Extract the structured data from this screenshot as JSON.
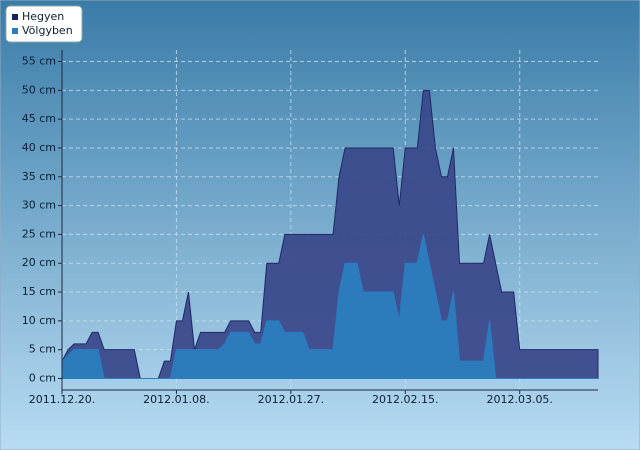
{
  "chart_data": {
    "type": "area",
    "categories": [
      "2011.12.20.",
      null,
      null,
      null,
      null,
      null,
      null,
      null,
      null,
      null,
      null,
      null,
      null,
      null,
      null,
      null,
      null,
      null,
      null,
      "2012.01.08.",
      null,
      null,
      null,
      null,
      null,
      null,
      null,
      null,
      null,
      null,
      null,
      null,
      null,
      null,
      null,
      null,
      null,
      null,
      "2012.01.27.",
      null,
      null,
      null,
      null,
      null,
      null,
      null,
      null,
      null,
      null,
      null,
      null,
      null,
      null,
      null,
      null,
      null,
      null,
      "2012.02.15.",
      null,
      null,
      null,
      null,
      null,
      null,
      null,
      null,
      null,
      null,
      null,
      null,
      null,
      null,
      null,
      null,
      null,
      null,
      "2012.03.05.",
      null,
      null,
      null,
      null,
      null,
      null,
      null,
      null,
      null,
      null,
      null,
      null,
      null
    ],
    "series": [
      {
        "name": "Hegyen",
        "color": "#3b4a8c",
        "values": [
          3,
          5,
          6,
          6,
          6,
          8,
          8,
          5,
          5,
          5,
          5,
          5,
          5,
          0,
          0,
          0,
          0,
          3,
          3,
          10,
          10,
          15,
          5,
          8,
          8,
          8,
          8,
          8,
          10,
          10,
          10,
          10,
          8,
          8,
          20,
          20,
          20,
          25,
          25,
          25,
          25,
          25,
          25,
          25,
          25,
          25,
          35,
          40,
          40,
          40,
          40,
          40,
          40,
          40,
          40,
          40,
          30,
          40,
          40,
          40,
          50,
          50,
          40,
          35,
          35,
          40,
          20,
          20,
          20,
          20,
          20,
          25,
          20,
          15,
          15,
          15,
          5,
          5,
          5,
          5,
          5,
          5,
          5,
          5,
          5,
          5,
          5,
          5,
          5,
          5
        ]
      },
      {
        "name": "Völgyben",
        "color": "#2b7dbf",
        "values": [
          3,
          4,
          5,
          5,
          5,
          5,
          5,
          0,
          0,
          0,
          0,
          0,
          0,
          0,
          0,
          0,
          0,
          0,
          0,
          5,
          5,
          5,
          5,
          5,
          5,
          5,
          5,
          6,
          8,
          8,
          8,
          8,
          6,
          6,
          10,
          10,
          10,
          8,
          8,
          8,
          8,
          5,
          5,
          5,
          5,
          5,
          15,
          20,
          20,
          20,
          15,
          15,
          15,
          15,
          15,
          15,
          10,
          20,
          20,
          20,
          25,
          20,
          15,
          10,
          10,
          15,
          3,
          3,
          3,
          3,
          3,
          10,
          0,
          0,
          0,
          0,
          0,
          0,
          0,
          0,
          0,
          0,
          0,
          0,
          0,
          0,
          0,
          0,
          0,
          0
        ]
      }
    ],
    "ylim": [
      -2,
      57
    ],
    "yticks": [
      {
        "value": 0,
        "label": "0 cm"
      },
      {
        "value": 5,
        "label": "5 cm"
      },
      {
        "value": 10,
        "label": "10 cm"
      },
      {
        "value": 15,
        "label": "15 cm"
      },
      {
        "value": 20,
        "label": "20 cm"
      },
      {
        "value": 25,
        "label": "25 cm"
      },
      {
        "value": 30,
        "label": "30 cm"
      },
      {
        "value": 35,
        "label": "35 cm"
      },
      {
        "value": 40,
        "label": "40 cm"
      },
      {
        "value": 45,
        "label": "45 cm"
      },
      {
        "value": 50,
        "label": "50 cm"
      },
      {
        "value": 55,
        "label": "55 cm"
      }
    ],
    "grid": true,
    "legend": "top-left"
  }
}
